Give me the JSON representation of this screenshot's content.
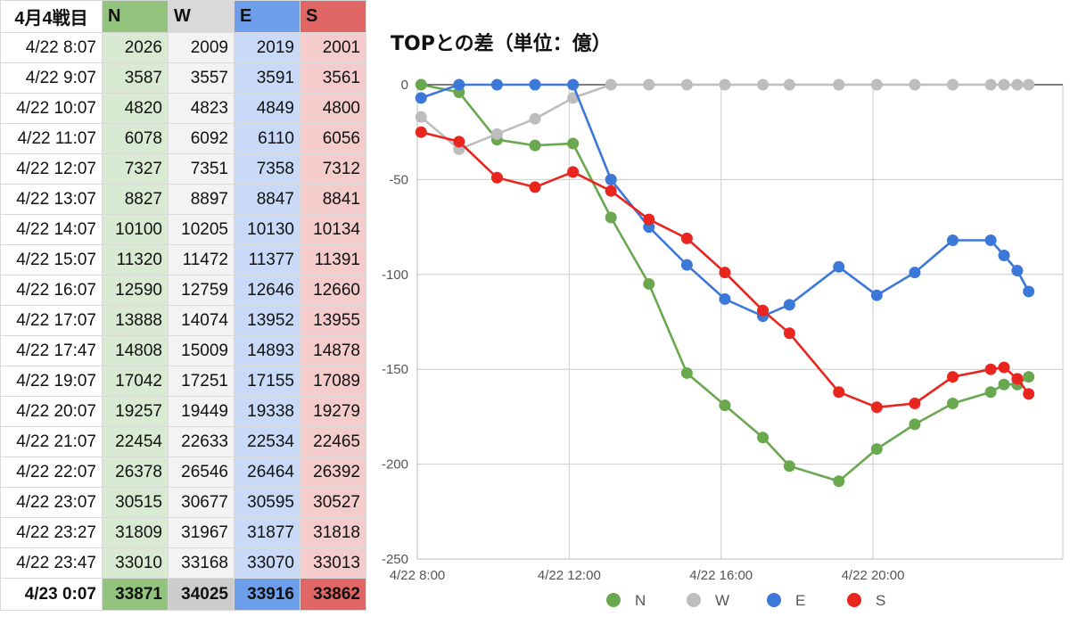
{
  "table": {
    "corner_label": "4月4戦目",
    "columns": [
      "N",
      "W",
      "E",
      "S"
    ],
    "header_colors": [
      "#93c47d",
      "#d9d9d9",
      "#6d9eeb",
      "#e06666"
    ],
    "cell_colors": [
      "#d9ead3",
      "#f3f3f3",
      "#c9daf8",
      "#f4cccc"
    ],
    "total_colors": [
      "#93c47d",
      "#cccccc",
      "#6d9eeb",
      "#e06666"
    ],
    "rows": [
      {
        "time": "4/22 8:07",
        "values": [
          "2026",
          "2009",
          "2019",
          "2001"
        ]
      },
      {
        "time": "4/22 9:07",
        "values": [
          "3587",
          "3557",
          "3591",
          "3561"
        ]
      },
      {
        "time": "4/22 10:07",
        "values": [
          "4820",
          "4823",
          "4849",
          "4800"
        ]
      },
      {
        "time": "4/22 11:07",
        "values": [
          "6078",
          "6092",
          "6110",
          "6056"
        ]
      },
      {
        "time": "4/22 12:07",
        "values": [
          "7327",
          "7351",
          "7358",
          "7312"
        ]
      },
      {
        "time": "4/22 13:07",
        "values": [
          "8827",
          "8897",
          "8847",
          "8841"
        ]
      },
      {
        "time": "4/22 14:07",
        "values": [
          "10100",
          "10205",
          "10130",
          "10134"
        ]
      },
      {
        "time": "4/22 15:07",
        "values": [
          "11320",
          "11472",
          "11377",
          "11391"
        ]
      },
      {
        "time": "4/22 16:07",
        "values": [
          "12590",
          "12759",
          "12646",
          "12660"
        ]
      },
      {
        "time": "4/22 17:07",
        "values": [
          "13888",
          "14074",
          "13952",
          "13955"
        ]
      },
      {
        "time": "4/22 17:47",
        "values": [
          "14808",
          "15009",
          "14893",
          "14878"
        ]
      },
      {
        "time": "4/22 19:07",
        "values": [
          "17042",
          "17251",
          "17155",
          "17089"
        ]
      },
      {
        "time": "4/22 20:07",
        "values": [
          "19257",
          "19449",
          "19338",
          "19279"
        ]
      },
      {
        "time": "4/22 21:07",
        "values": [
          "22454",
          "22633",
          "22534",
          "22465"
        ]
      },
      {
        "time": "4/22 22:07",
        "values": [
          "26378",
          "26546",
          "26464",
          "26392"
        ]
      },
      {
        "time": "4/22 23:07",
        "values": [
          "30515",
          "30677",
          "30595",
          "30527"
        ]
      },
      {
        "time": "4/22 23:27",
        "values": [
          "31809",
          "31967",
          "31877",
          "31818"
        ]
      },
      {
        "time": "4/22 23:47",
        "values": [
          "33010",
          "33168",
          "33070",
          "33013"
        ]
      },
      {
        "time": "4/23 0:07",
        "values": [
          "33871",
          "34025",
          "33916",
          "33862"
        ]
      }
    ]
  },
  "chart_data": {
    "type": "line",
    "title": "TOPとの差（単位：億）",
    "xlabel": "",
    "ylabel": "",
    "x_unit": "hours since 4/22 0:00",
    "xlim": [
      8,
      25
    ],
    "ylim": [
      -250,
      0
    ],
    "yticks": [
      0,
      -50,
      -100,
      -150,
      -200,
      -250
    ],
    "xticks": [
      {
        "value": 8,
        "label": "4/22 8:00"
      },
      {
        "value": 12,
        "label": "4/22 12:00"
      },
      {
        "value": 16,
        "label": "4/22 16:00"
      },
      {
        "value": 20,
        "label": "4/22 20:00"
      }
    ],
    "grid": true,
    "legend": "bottom",
    "series": [
      {
        "name": "N",
        "color": "#6aa84f",
        "points": [
          [
            8.1,
            0
          ],
          [
            9.1,
            -4
          ],
          [
            10.1,
            -29
          ],
          [
            11.1,
            -32
          ],
          [
            12.1,
            -31
          ],
          [
            13.1,
            -70
          ],
          [
            14.1,
            -105
          ],
          [
            15.1,
            -152
          ],
          [
            16.1,
            -169
          ],
          [
            17.1,
            -186
          ],
          [
            17.8,
            -201
          ],
          [
            19.1,
            -209
          ],
          [
            20.1,
            -192
          ],
          [
            21.1,
            -179
          ],
          [
            22.1,
            -168
          ],
          [
            23.1,
            -162
          ],
          [
            23.45,
            -158
          ],
          [
            23.8,
            -158
          ],
          [
            24.1,
            -154
          ]
        ]
      },
      {
        "name": "W",
        "color": "#bdbdbd",
        "points": [
          [
            8.1,
            -17
          ],
          [
            9.1,
            -34
          ],
          [
            10.1,
            -26
          ],
          [
            11.1,
            -18
          ],
          [
            12.1,
            -7
          ],
          [
            13.1,
            0
          ],
          [
            14.1,
            0
          ],
          [
            15.1,
            0
          ],
          [
            16.1,
            0
          ],
          [
            17.1,
            0
          ],
          [
            17.8,
            0
          ],
          [
            19.1,
            0
          ],
          [
            20.1,
            0
          ],
          [
            21.1,
            0
          ],
          [
            22.1,
            0
          ],
          [
            23.1,
            0
          ],
          [
            23.45,
            0
          ],
          [
            23.8,
            0
          ],
          [
            24.1,
            0
          ]
        ]
      },
      {
        "name": "E",
        "color": "#3c78d8",
        "points": [
          [
            8.1,
            -7
          ],
          [
            9.1,
            0
          ],
          [
            10.1,
            0
          ],
          [
            11.1,
            0
          ],
          [
            12.1,
            0
          ],
          [
            13.1,
            -50
          ],
          [
            14.1,
            -75
          ],
          [
            15.1,
            -95
          ],
          [
            16.1,
            -113
          ],
          [
            17.1,
            -122
          ],
          [
            17.8,
            -116
          ],
          [
            19.1,
            -96
          ],
          [
            20.1,
            -111
          ],
          [
            21.1,
            -99
          ],
          [
            22.1,
            -82
          ],
          [
            23.1,
            -82
          ],
          [
            23.45,
            -90
          ],
          [
            23.8,
            -98
          ],
          [
            24.1,
            -109
          ]
        ]
      },
      {
        "name": "S",
        "color": "#e8261f",
        "points": [
          [
            8.1,
            -25
          ],
          [
            9.1,
            -30
          ],
          [
            10.1,
            -49
          ],
          [
            11.1,
            -54
          ],
          [
            12.1,
            -46
          ],
          [
            13.1,
            -56
          ],
          [
            14.1,
            -71
          ],
          [
            15.1,
            -81
          ],
          [
            16.1,
            -99
          ],
          [
            17.1,
            -119
          ],
          [
            17.8,
            -131
          ],
          [
            19.1,
            -162
          ],
          [
            20.1,
            -170
          ],
          [
            21.1,
            -168
          ],
          [
            22.1,
            -154
          ],
          [
            23.1,
            -150
          ],
          [
            23.45,
            -149
          ],
          [
            23.8,
            -155
          ],
          [
            24.1,
            -163
          ]
        ]
      }
    ]
  }
}
